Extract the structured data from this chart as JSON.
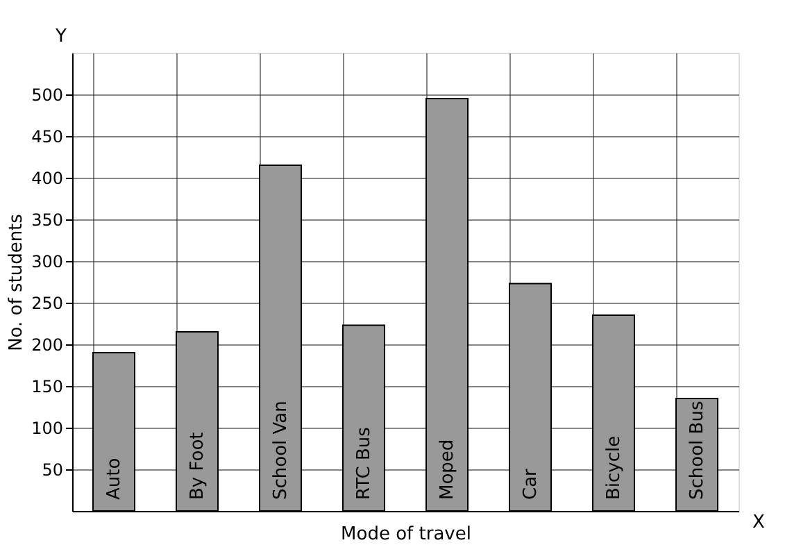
{
  "chart_data": {
    "type": "bar",
    "xlabel": "Mode of travel",
    "ylabel": "No. of students",
    "categories": [
      "Auto",
      "By Foot",
      "School Van",
      "RTC Bus",
      "Moped",
      "Car",
      "Bicycle",
      "School Bus"
    ],
    "values": [
      190,
      215,
      415,
      223,
      495,
      273,
      235,
      135
    ],
    "color": "#999999",
    "ylim": [
      0,
      550
    ],
    "yticks": [
      50,
      100,
      150,
      200,
      250,
      300,
      350,
      400,
      450,
      500
    ],
    "grid": true,
    "annotations": [
      "X",
      "Y"
    ]
  }
}
